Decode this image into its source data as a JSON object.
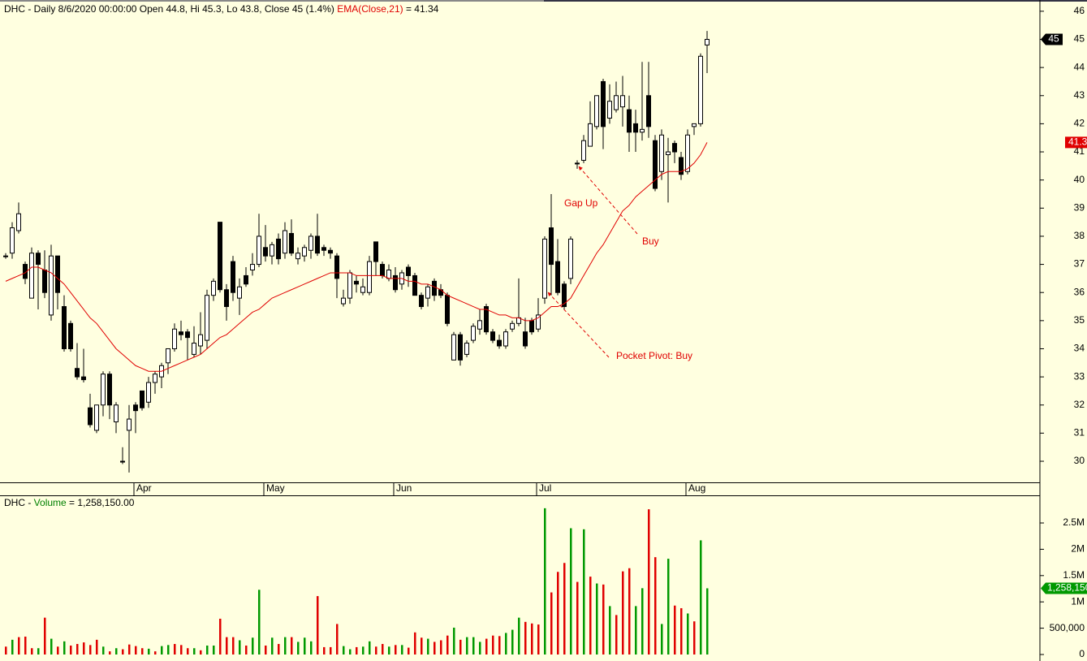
{
  "chart_data": [
    {
      "type": "candlestick",
      "title": "DHC - Daily 8/6/2020 00:00:00 Open 44.8, Hi 45.3, Lo 43.8, Close 45 (1.4%)",
      "ema_readout": "= 41.34",
      "categories": [
        null,
        null,
        null,
        null,
        null,
        null,
        null,
        null,
        null,
        null,
        null,
        null,
        null,
        null,
        null,
        null,
        null,
        null,
        null,
        null,
        "Apr",
        null,
        null,
        null,
        null,
        null,
        null,
        null,
        null,
        null,
        null,
        null,
        null,
        null,
        null,
        null,
        null,
        null,
        null,
        null,
        "May",
        null,
        null,
        null,
        null,
        null,
        null,
        null,
        null,
        null,
        null,
        null,
        null,
        null,
        null,
        null,
        null,
        null,
        null,
        null,
        "Jun",
        null,
        null,
        null,
        null,
        null,
        null,
        null,
        null,
        null,
        null,
        null,
        null,
        null,
        null,
        null,
        null,
        null,
        null,
        null,
        null,
        null,
        "Jul",
        null,
        null,
        null,
        null,
        null,
        null,
        null,
        null,
        null,
        null,
        null,
        null,
        null,
        null,
        null,
        null,
        null,
        null,
        null,
        null,
        null,
        null,
        "Aug",
        null,
        null,
        null
      ],
      "open": [
        37.3,
        37.4,
        38.2,
        37.0,
        35.8,
        37.4,
        36.8,
        35.2,
        37.3,
        35.5,
        34.9,
        33.3,
        33.0,
        31.9,
        31.1,
        32.0,
        33.1,
        31.4,
        30.0,
        31.1,
        32.0,
        32.5,
        32.1,
        32.8,
        33.0,
        33.5,
        34.0,
        34.6,
        34.6,
        33.8,
        34.1,
        34.3,
        35.9,
        38.5,
        36.1,
        37.1,
        35.8,
        36.6,
        36.8,
        37.0,
        37.6,
        37.3,
        37.9,
        37.4,
        38.1,
        37.2,
        37.3,
        37.5,
        38.0,
        37.6,
        37.5,
        37.3,
        35.6,
        35.8,
        36.4,
        36.0,
        36.0,
        37.8,
        37.0,
        36.5,
        36.6,
        36.3,
        36.9,
        36.6,
        35.9,
        35.8,
        36.4,
        36.1,
        35.9,
        33.6,
        34.5,
        33.8,
        34.3,
        34.7,
        35.5,
        34.6,
        34.3,
        34.1,
        34.7,
        34.9,
        34.6,
        35.0,
        34.7,
        35.8,
        38.3,
        37.1,
        36.3,
        36.5,
        40.6,
        40.7,
        41.2,
        41.9,
        43.5,
        42.2,
        42.5,
        42.6,
        42.5,
        42.0,
        41.7,
        43.0,
        41.4,
        40.3,
        40.9,
        41.3,
        40.8,
        40.3,
        41.9,
        42.0,
        44.8
      ],
      "high": [
        37.4,
        38.5,
        39.2,
        37.1,
        37.6,
        37.5,
        37.5,
        37.7,
        37.3,
        35.9,
        35.0,
        34.2,
        34.0,
        32.4,
        32.0,
        33.2,
        33.2,
        32.1,
        30.5,
        32.0,
        32.1,
        32.5,
        33.0,
        33.2,
        33.5,
        34.0,
        34.9,
        35.0,
        34.7,
        34.8,
        35.3,
        36.1,
        36.5,
        38.5,
        36.3,
        37.3,
        36.5,
        36.9,
        37.4,
        38.8,
        38.4,
        37.8,
        38.1,
        38.5,
        38.6,
        37.6,
        37.7,
        38.1,
        38.8,
        37.7,
        37.6,
        37.4,
        36.1,
        36.8,
        36.6,
        36.5,
        37.3,
        37.8,
        37.1,
        37.0,
        36.9,
        36.8,
        37.0,
        36.7,
        36.0,
        36.3,
        36.5,
        36.3,
        36.0,
        34.6,
        34.6,
        34.3,
        34.9,
        35.4,
        35.6,
        34.7,
        34.5,
        34.7,
        35.0,
        36.5,
        35.1,
        35.1,
        35.8,
        38.0,
        39.5,
        37.9,
        36.4,
        38.0,
        40.7,
        41.6,
        42.8,
        43.0,
        43.6,
        43.4,
        43.5,
        43.7,
        43.0,
        42.5,
        44.2,
        44.2,
        41.6,
        41.8,
        41.5,
        41.4,
        41.0,
        41.8,
        42.0,
        44.5,
        45.3
      ],
      "low": [
        37.2,
        37.2,
        38.1,
        36.3,
        35.8,
        35.4,
        35.8,
        35.0,
        35.4,
        33.9,
        33.9,
        32.9,
        32.8,
        31.2,
        31.0,
        31.6,
        31.5,
        31.0,
        29.9,
        29.6,
        31.0,
        31.8,
        31.9,
        32.4,
        32.6,
        33.1,
        33.9,
        34.3,
        33.6,
        33.7,
        33.8,
        34.0,
        35.7,
        36.0,
        35.0,
        35.7,
        35.2,
        36.2,
        36.6,
        36.9,
        37.1,
        37.0,
        37.0,
        37.2,
        37.3,
        37.0,
        37.1,
        37.2,
        37.3,
        37.3,
        37.2,
        35.8,
        35.5,
        35.6,
        36.0,
        35.9,
        35.9,
        36.6,
        36.5,
        36.4,
        36.0,
        36.1,
        36.2,
        35.9,
        35.4,
        35.5,
        35.7,
        35.8,
        34.8,
        33.6,
        33.4,
        33.7,
        34.2,
        34.5,
        34.5,
        34.2,
        34.0,
        34.0,
        34.6,
        34.8,
        34.0,
        34.5,
        34.6,
        35.6,
        35.9,
        35.9,
        35.4,
        36.3,
        40.4,
        40.6,
        41.2,
        41.8,
        41.1,
        42.0,
        42.4,
        41.9,
        41.0,
        41.0,
        41.4,
        41.5,
        39.6,
        40.0,
        39.2,
        40.6,
        40.0,
        40.2,
        41.6,
        41.9,
        43.8
      ],
      "close": [
        37.3,
        38.3,
        38.8,
        36.5,
        37.4,
        37.0,
        36.0,
        37.3,
        36.0,
        34.0,
        34.0,
        33.0,
        32.9,
        31.3,
        32.0,
        33.1,
        32.0,
        32.0,
        30.0,
        31.5,
        31.8,
        31.9,
        32.8,
        33.1,
        33.4,
        34.0,
        34.7,
        34.5,
        34.4,
        34.2,
        34.5,
        35.9,
        36.4,
        36.1,
        35.5,
        36.0,
        36.2,
        36.3,
        37.0,
        38.0,
        37.3,
        37.7,
        37.2,
        38.2,
        37.4,
        37.4,
        37.6,
        38.0,
        37.4,
        37.5,
        37.4,
        36.5,
        35.8,
        36.7,
        36.3,
        36.2,
        37.1,
        37.1,
        36.6,
        36.8,
        36.1,
        36.7,
        36.6,
        35.9,
        35.5,
        36.2,
        35.9,
        35.9,
        34.9,
        34.5,
        33.6,
        34.2,
        34.8,
        35.0,
        34.6,
        34.3,
        34.1,
        34.6,
        34.9,
        35.1,
        34.1,
        34.6,
        35.2,
        37.9,
        37.0,
        36.0,
        35.5,
        37.9,
        40.6,
        41.4,
        42.0,
        43.0,
        41.9,
        42.8,
        43.0,
        43.0,
        41.7,
        41.7,
        41.8,
        41.9,
        39.7,
        41.6,
        41.0,
        41.0,
        40.2,
        41.6,
        42.0,
        44.4,
        45
      ],
      "up_color": "#ffffff",
      "down_color": "#000000",
      "series": [
        {
          "name": "EMA(Close,21)",
          "color": "#e00000",
          "values": [
            36.4,
            36.5,
            36.6,
            36.7,
            36.9,
            36.9,
            36.8,
            36.7,
            36.5,
            36.3,
            36.0,
            35.7,
            35.4,
            35.1,
            34.9,
            34.6,
            34.3,
            34.0,
            33.8,
            33.6,
            33.4,
            33.3,
            33.2,
            33.2,
            33.2,
            33.3,
            33.4,
            33.5,
            33.6,
            33.7,
            33.8,
            34.0,
            34.2,
            34.4,
            34.5,
            34.7,
            34.9,
            35.1,
            35.3,
            35.4,
            35.6,
            35.8,
            35.9,
            36.0,
            36.1,
            36.2,
            36.3,
            36.4,
            36.5,
            36.6,
            36.7,
            36.7,
            36.7,
            36.7,
            36.6,
            36.6,
            36.6,
            36.6,
            36.6,
            36.5,
            36.5,
            36.5,
            36.4,
            36.4,
            36.3,
            36.3,
            36.2,
            36.1,
            35.9,
            35.8,
            35.7,
            35.6,
            35.5,
            35.4,
            35.4,
            35.3,
            35.2,
            35.2,
            35.1,
            35.1,
            35.0,
            35.0,
            35.1,
            35.3,
            35.5,
            35.5,
            35.6,
            35.8,
            36.2,
            36.6,
            37.0,
            37.4,
            37.7,
            38.1,
            38.5,
            38.9,
            39.1,
            39.4,
            39.6,
            39.8,
            40.0,
            40.2,
            40.3,
            40.3,
            40.3,
            40.4,
            40.6,
            40.9,
            41.3363
          ]
        }
      ],
      "ylim": [
        29.25,
        46.4
      ],
      "yticks": [
        30,
        31,
        32,
        33,
        34,
        35,
        36,
        37,
        38,
        39,
        40,
        41,
        42,
        43,
        44,
        45,
        46
      ],
      "annotations": [
        {
          "text": "Gap Up"
        },
        {
          "text": "Buy"
        },
        {
          "text": "Pocket Pivot: Buy"
        }
      ]
    },
    {
      "type": "bar",
      "title": "DHC -",
      "readout": "= 1,258,150.00",
      "series": [
        {
          "name": "Volume",
          "color": "#008000",
          "values": [
            150000,
            280000,
            330000,
            340000,
            120000,
            120000,
            700000,
            300000,
            150000,
            250000,
            170000,
            200000,
            230000,
            180000,
            280000,
            150000,
            60000,
            120000,
            100000,
            190000,
            160000,
            120000,
            110000,
            60000,
            160000,
            180000,
            200000,
            180000,
            120000,
            120000,
            80000,
            170000,
            170000,
            680000,
            330000,
            330000,
            270000,
            170000,
            320000,
            1230000,
            170000,
            320000,
            200000,
            330000,
            330000,
            240000,
            320000,
            250000,
            1110000,
            140000,
            140000,
            580000,
            160000,
            100000,
            140000,
            150000,
            250000,
            150000,
            200000,
            150000,
            180000,
            180000,
            130000,
            420000,
            320000,
            300000,
            240000,
            270000,
            360000,
            510000,
            280000,
            330000,
            330000,
            240000,
            300000,
            360000,
            350000,
            410000,
            470000,
            700000,
            620000,
            590000,
            570000,
            2780000,
            1180000,
            1570000,
            1740000,
            2400000,
            1380000,
            2380000,
            1480000,
            1350000,
            1330000,
            920000,
            750000,
            1580000,
            1640000,
            920000,
            1260000,
            2760000,
            1850000,
            580000,
            1820000,
            930000,
            880000,
            780000,
            630000,
            2170000,
            1258150
          ],
          "value_labels": {
            "108": "1,258,150"
          },
          "colors": [
            "#e00000",
            "#009900",
            "#e00000",
            "#e00000",
            "#e00000",
            "#009900",
            "#e00000",
            "#009900",
            "#e00000",
            "#009900",
            "#e00000",
            "#e00000",
            "#e00000",
            "#e00000",
            "#e00000",
            "#009900",
            "#e00000",
            "#009900",
            "#e00000",
            "#e00000",
            "#e00000",
            "#e00000",
            "#009900",
            "#e00000",
            "#009900",
            "#009900",
            "#e00000",
            "#e00000",
            "#e00000",
            "#009900",
            "#e00000",
            "#009900",
            "#009900",
            "#e00000",
            "#e00000",
            "#e00000",
            "#009900",
            "#e00000",
            "#009900",
            "#009900",
            "#e00000",
            "#009900",
            "#e00000",
            "#009900",
            "#e00000",
            "#009900",
            "#009900",
            "#009900",
            "#e00000",
            "#e00000",
            "#e00000",
            "#e00000",
            "#009900",
            "#009900",
            "#e00000",
            "#009900",
            "#009900",
            "#e00000",
            "#e00000",
            "#009900",
            "#e00000",
            "#009900",
            "#e00000",
            "#e00000",
            "#e00000",
            "#009900",
            "#e00000",
            "#e00000",
            "#e00000",
            "#009900",
            "#e00000",
            "#009900",
            "#009900",
            "#009900",
            "#e00000",
            "#e00000",
            "#e00000",
            "#009900",
            "#009900",
            "#009900",
            "#e00000",
            "#e00000",
            "#e00000",
            "#009900",
            "#e00000",
            "#e00000",
            "#e00000",
            "#009900",
            "#e00000",
            "#009900",
            "#e00000",
            "#009900",
            "#e00000",
            "#009900",
            "#e00000",
            "#e00000",
            "#e00000",
            "#009900",
            "#009900",
            "#e00000",
            "#e00000",
            "#009900",
            "#009900",
            "#e00000",
            "#e00000",
            "#009900",
            "#e00000",
            "#009900",
            "#009900"
          ]
        }
      ],
      "ylim": [
        0,
        3025000
      ],
      "yticks": [
        0,
        {
          "value": 500000,
          "label": "500,000"
        },
        {
          "value": 1000000,
          "label": "1M"
        },
        {
          "value": 1500000,
          "label": "1.5M"
        },
        {
          "value": 2000000,
          "label": "2M"
        },
        {
          "value": 2500000,
          "label": "2.5M"
        }
      ]
    }
  ]
}
